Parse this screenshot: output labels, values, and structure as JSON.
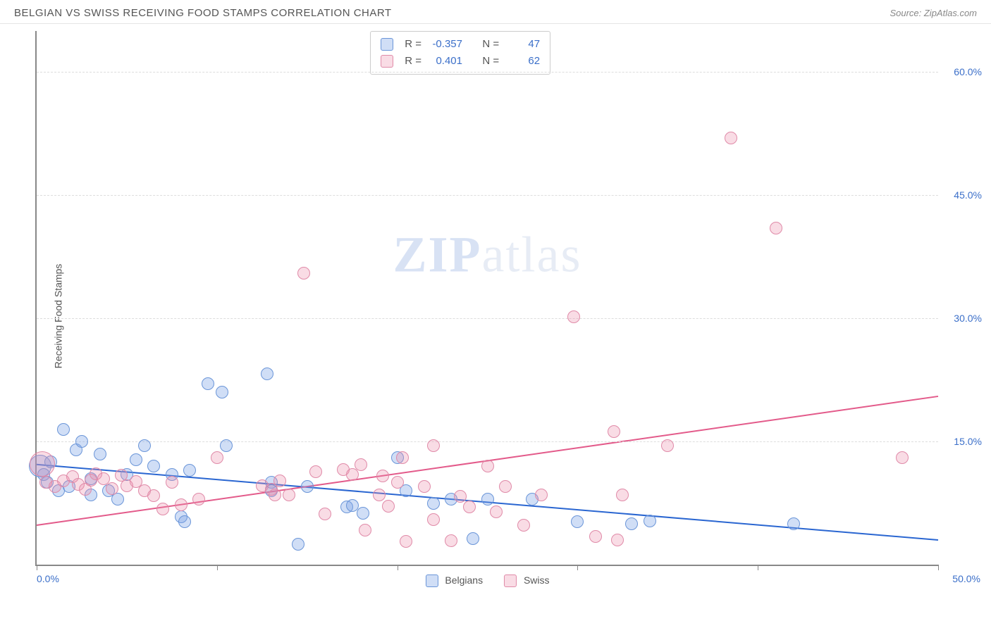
{
  "header": {
    "title": "BELGIAN VS SWISS RECEIVING FOOD STAMPS CORRELATION CHART",
    "source": "Source: ZipAtlas.com"
  },
  "ylabel": "Receiving Food Stamps",
  "watermark": {
    "zip": "ZIP",
    "atlas": "atlas"
  },
  "chart": {
    "type": "scatter",
    "xlim": [
      0,
      50
    ],
    "ylim": [
      0,
      65
    ],
    "background_color": "#ffffff",
    "grid_color": "#dddddd",
    "axis_color": "#888888",
    "label_color": "#3b6fc9",
    "label_fontsize": 14,
    "xticks": [
      0,
      10,
      20,
      30,
      40,
      50
    ],
    "xtick_labels_shown": {
      "0": "0.0%",
      "50": "50.0%"
    },
    "yticks": [
      15,
      30,
      45,
      60
    ],
    "ytick_labels": [
      "15.0%",
      "30.0%",
      "45.0%",
      "60.0%"
    ],
    "marker_radius": 9,
    "marker_radius_large": 16,
    "marker_opacity": 0.55,
    "marker_stroke_width": 1.5,
    "series": [
      {
        "name": "Belgians",
        "fill_color": "rgba(120,160,230,0.35)",
        "stroke_color": "#6a95d8",
        "trend_color": "#2a66d1",
        "trend_width": 2,
        "trend": {
          "x1": 0,
          "y1": 12.2,
          "x2": 50,
          "y2": 3.0
        },
        "R": "-0.357",
        "N": "47",
        "points": [
          {
            "x": 0.2,
            "y": 12,
            "r": 16
          },
          {
            "x": 0.4,
            "y": 11
          },
          {
            "x": 0.6,
            "y": 10
          },
          {
            "x": 0.8,
            "y": 12.5
          },
          {
            "x": 1.2,
            "y": 9
          },
          {
            "x": 1.5,
            "y": 16.5
          },
          {
            "x": 1.8,
            "y": 9.5
          },
          {
            "x": 2.2,
            "y": 14
          },
          {
            "x": 2.5,
            "y": 15
          },
          {
            "x": 3,
            "y": 8.5
          },
          {
            "x": 3,
            "y": 10.5
          },
          {
            "x": 3.5,
            "y": 13.5
          },
          {
            "x": 4,
            "y": 9
          },
          {
            "x": 4.5,
            "y": 8
          },
          {
            "x": 5,
            "y": 11
          },
          {
            "x": 5.5,
            "y": 12.8
          },
          {
            "x": 6,
            "y": 14.5
          },
          {
            "x": 6.5,
            "y": 12
          },
          {
            "x": 7.5,
            "y": 11
          },
          {
            "x": 8,
            "y": 5.8
          },
          {
            "x": 8.2,
            "y": 5.2
          },
          {
            "x": 8.5,
            "y": 11.5
          },
          {
            "x": 9.5,
            "y": 22
          },
          {
            "x": 10.3,
            "y": 21
          },
          {
            "x": 10.5,
            "y": 14.5
          },
          {
            "x": 12.8,
            "y": 23.2
          },
          {
            "x": 13,
            "y": 10
          },
          {
            "x": 13,
            "y": 9
          },
          {
            "x": 14.5,
            "y": 2.5
          },
          {
            "x": 15,
            "y": 9.5
          },
          {
            "x": 17.2,
            "y": 7
          },
          {
            "x": 17.5,
            "y": 7.2
          },
          {
            "x": 18.1,
            "y": 6.3
          },
          {
            "x": 20,
            "y": 13
          },
          {
            "x": 20.5,
            "y": 9
          },
          {
            "x": 22,
            "y": 7.5
          },
          {
            "x": 23,
            "y": 8
          },
          {
            "x": 24.2,
            "y": 3.2
          },
          {
            "x": 25,
            "y": 8
          },
          {
            "x": 27.5,
            "y": 8
          },
          {
            "x": 30,
            "y": 5.2
          },
          {
            "x": 33,
            "y": 5
          },
          {
            "x": 34,
            "y": 5.3
          },
          {
            "x": 42,
            "y": 5
          }
        ]
      },
      {
        "name": "Swiss",
        "fill_color": "rgba(235,140,170,0.3)",
        "stroke_color": "#e08aa8",
        "trend_color": "#e35a8a",
        "trend_width": 2,
        "trend": {
          "x1": 0,
          "y1": 4.8,
          "x2": 50,
          "y2": 20.5
        },
        "R": "0.401",
        "N": "62",
        "points": [
          {
            "x": 0.3,
            "y": 12.3,
            "r": 18
          },
          {
            "x": 0.5,
            "y": 10
          },
          {
            "x": 1,
            "y": 9.5
          },
          {
            "x": 1.5,
            "y": 10.2
          },
          {
            "x": 2,
            "y": 10.7
          },
          {
            "x": 2.3,
            "y": 9.8
          },
          {
            "x": 2.7,
            "y": 9.2
          },
          {
            "x": 3,
            "y": 10.3
          },
          {
            "x": 3.3,
            "y": 11.1
          },
          {
            "x": 3.7,
            "y": 10.5
          },
          {
            "x": 4.2,
            "y": 9.3
          },
          {
            "x": 4.7,
            "y": 10.9
          },
          {
            "x": 5,
            "y": 9.6
          },
          {
            "x": 5.5,
            "y": 10.1
          },
          {
            "x": 6,
            "y": 9
          },
          {
            "x": 6.5,
            "y": 8.4
          },
          {
            "x": 7,
            "y": 6.8
          },
          {
            "x": 7.5,
            "y": 10
          },
          {
            "x": 8,
            "y": 7.3
          },
          {
            "x": 9,
            "y": 8
          },
          {
            "x": 10,
            "y": 13
          },
          {
            "x": 12.5,
            "y": 9.6
          },
          {
            "x": 13,
            "y": 9.2
          },
          {
            "x": 13.2,
            "y": 8.5
          },
          {
            "x": 13.5,
            "y": 10.2
          },
          {
            "x": 14,
            "y": 8.5
          },
          {
            "x": 14.8,
            "y": 35.5
          },
          {
            "x": 15.5,
            "y": 11.3
          },
          {
            "x": 16,
            "y": 6.2
          },
          {
            "x": 17,
            "y": 11.6
          },
          {
            "x": 17.5,
            "y": 11
          },
          {
            "x": 18,
            "y": 12.2
          },
          {
            "x": 18.2,
            "y": 4.2
          },
          {
            "x": 19,
            "y": 8.5
          },
          {
            "x": 19.2,
            "y": 10.8
          },
          {
            "x": 19.5,
            "y": 7.1
          },
          {
            "x": 20,
            "y": 10
          },
          {
            "x": 20.3,
            "y": 13
          },
          {
            "x": 20.5,
            "y": 2.8
          },
          {
            "x": 21.5,
            "y": 9.5
          },
          {
            "x": 22,
            "y": 14.5
          },
          {
            "x": 22,
            "y": 5.5
          },
          {
            "x": 23,
            "y": 2.9
          },
          {
            "x": 23.5,
            "y": 8.3
          },
          {
            "x": 24,
            "y": 7
          },
          {
            "x": 25,
            "y": 12
          },
          {
            "x": 25.5,
            "y": 6.4
          },
          {
            "x": 26,
            "y": 9.5
          },
          {
            "x": 27,
            "y": 4.8
          },
          {
            "x": 28,
            "y": 8.5
          },
          {
            "x": 29.8,
            "y": 30.2
          },
          {
            "x": 31,
            "y": 3.4
          },
          {
            "x": 32,
            "y": 16.2
          },
          {
            "x": 32.2,
            "y": 3
          },
          {
            "x": 32.5,
            "y": 8.5
          },
          {
            "x": 35,
            "y": 14.5
          },
          {
            "x": 38.5,
            "y": 52
          },
          {
            "x": 41,
            "y": 41
          },
          {
            "x": 48,
            "y": 13
          }
        ]
      }
    ]
  },
  "stats_box": {
    "r_label": "R =",
    "n_label": "N ="
  },
  "bottom_legend": {
    "belgians": "Belgians",
    "swiss": "Swiss"
  }
}
